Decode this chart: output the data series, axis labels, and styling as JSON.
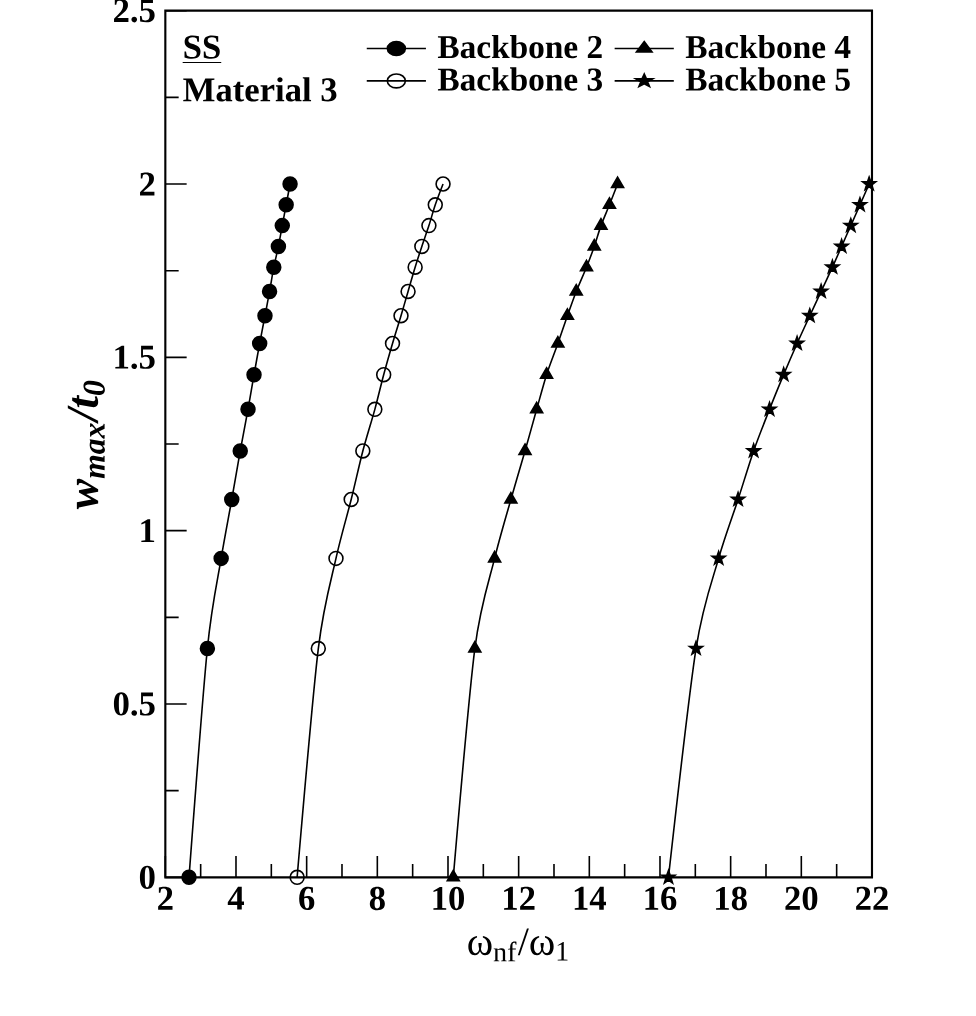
{
  "chart_data": {
    "type": "line",
    "xlabel": "ω$_{nf}$/ω$_{1}$",
    "ylabel": "w$_{max}$/t$_{0}$",
    "annotations": [
      "SS",
      "Material 3"
    ],
    "xlim": [
      2,
      22
    ],
    "xticks": [
      2,
      4,
      6,
      8,
      10,
      12,
      14,
      16,
      18,
      20,
      22
    ],
    "ylim": [
      0,
      2.5
    ],
    "yticks": [
      0,
      0.5,
      1,
      1.5,
      2,
      2.5
    ],
    "grid": false,
    "legend": "top right",
    "series": [
      {
        "name": "Backbone 2",
        "color": "#000000",
        "marker": "circle",
        "x": [
          2.67,
          3.19,
          3.58,
          3.88,
          4.12,
          4.34,
          4.51,
          4.67,
          4.82,
          4.95,
          5.07,
          5.2,
          5.31,
          5.42,
          5.53
        ],
        "values": [
          0,
          0.66,
          0.92,
          1.09,
          1.23,
          1.35,
          1.45,
          1.54,
          1.62,
          1.69,
          1.76,
          1.82,
          1.88,
          1.94,
          2.0
        ]
      },
      {
        "name": "Backbone 3",
        "color": "#000000",
        "marker": "open circle",
        "x": [
          5.73,
          6.33,
          6.83,
          7.26,
          7.59,
          7.93,
          8.18,
          8.43,
          8.67,
          8.87,
          9.07,
          9.26,
          9.46,
          9.64,
          9.86
        ],
        "values": [
          0,
          0.66,
          0.92,
          1.09,
          1.23,
          1.35,
          1.45,
          1.54,
          1.62,
          1.69,
          1.76,
          1.82,
          1.88,
          1.94,
          2.0
        ]
      },
      {
        "name": "Backbone 4",
        "color": "#000000",
        "marker": "triangle",
        "x": [
          10.15,
          10.76,
          11.32,
          11.78,
          12.18,
          12.51,
          12.79,
          13.11,
          13.38,
          13.63,
          13.92,
          14.14,
          14.33,
          14.57,
          14.8
        ],
        "values": [
          0,
          0.66,
          0.92,
          1.09,
          1.23,
          1.35,
          1.45,
          1.54,
          1.62,
          1.69,
          1.76,
          1.82,
          1.88,
          1.94,
          2.0
        ]
      },
      {
        "name": "Backbone 5",
        "color": "#000000",
        "marker": "star",
        "x": [
          16.24,
          17.02,
          17.66,
          18.21,
          18.65,
          19.1,
          19.5,
          19.88,
          20.24,
          20.56,
          20.88,
          21.14,
          21.4,
          21.66,
          21.92
        ],
        "values": [
          0,
          0.66,
          0.92,
          1.09,
          1.23,
          1.35,
          1.45,
          1.54,
          1.62,
          1.69,
          1.76,
          1.82,
          1.88,
          1.94,
          2.0
        ]
      }
    ]
  }
}
